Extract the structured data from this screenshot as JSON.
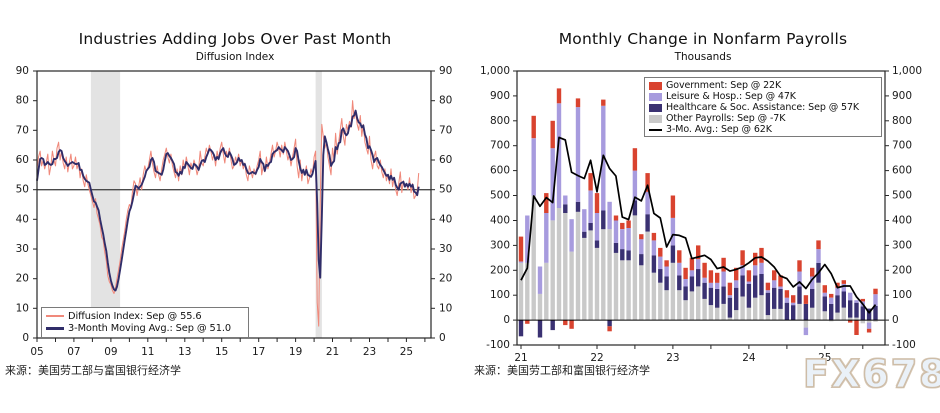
{
  "watermark": "FX678",
  "panels": {
    "left": {
      "title": "Industries Adding Jobs Over Past Month",
      "subtitle": "Diffusion Index",
      "source": "来源：美国劳工部与富国银行经济学",
      "legend": [
        {
          "label": "Diffusion Index: Sep @ 55.6"
        },
        {
          "label": "3-Month Moving Avg.: Sep @ 51.0"
        }
      ]
    },
    "right": {
      "title": "Monthly Change in Nonfarm Payrolls",
      "subtitle": "Thousands",
      "source": "来源：美国劳工部和富国银行经济学",
      "legend": [
        {
          "label": "Government: Sep @ 22K"
        },
        {
          "label": "Leisure & Hosp.: Sep @ 47K"
        },
        {
          "label": "Healthcare & Soc. Assistance: Sep @ 57K"
        },
        {
          "label": "Other Payrolls: Sep @ -7K"
        },
        {
          "label": "3-Mo. Avg.: Sep @ 62K"
        }
      ]
    }
  },
  "chart_data": [
    {
      "type": "line",
      "title": "Industries Adding Jobs Over Past Month",
      "subtitle": "Diffusion Index",
      "x_start_year": 2005,
      "x_range": [
        2005,
        2026.33
      ],
      "ylim": [
        0,
        90
      ],
      "y_tick_step": 10,
      "x_tick_labels": [
        "05",
        "07",
        "09",
        "11",
        "13",
        "15",
        "17",
        "19",
        "21",
        "23",
        "25"
      ],
      "reference_line": 50,
      "recession_bands": [
        [
          2007.92,
          2009.5
        ],
        [
          2020.08,
          2020.42
        ]
      ],
      "series": [
        {
          "name": "Diffusion Index",
          "last_point": "Sep @ 55.6",
          "color": "#f0897b",
          "values": [
            57,
            61,
            63,
            58,
            60,
            57,
            59,
            62,
            55,
            58,
            63,
            60,
            58,
            64,
            66,
            60,
            63,
            59,
            57,
            61,
            56,
            59,
            62,
            57,
            58,
            61,
            57,
            59,
            54,
            57,
            53,
            51,
            55,
            52,
            50,
            48,
            46,
            44,
            47,
            42,
            40,
            38,
            34,
            33,
            29,
            26,
            21,
            19,
            18,
            16,
            15,
            17,
            20,
            23,
            26,
            30,
            33,
            36,
            40,
            43,
            45,
            44,
            49,
            53,
            52,
            48,
            51,
            54,
            50,
            55,
            58,
            56,
            57,
            60,
            63,
            59,
            56,
            54,
            58,
            55,
            53,
            57,
            60,
            62,
            64,
            61,
            59,
            62,
            58,
            56,
            54,
            57,
            53,
            58,
            55,
            60,
            57,
            61,
            58,
            55,
            59,
            57,
            60,
            58,
            55,
            57,
            63,
            59,
            58,
            61,
            64,
            62,
            65,
            63,
            60,
            62,
            58,
            63,
            60,
            64,
            66,
            62,
            59,
            63,
            61,
            64,
            60,
            57,
            58,
            61,
            59,
            62,
            58,
            60,
            57,
            59,
            55,
            53,
            58,
            56,
            54,
            57,
            55,
            58,
            60,
            63,
            55,
            58,
            56,
            61,
            57,
            59,
            62,
            65,
            61,
            63,
            66,
            64,
            61,
            65,
            62,
            66,
            63,
            60,
            62,
            58,
            61,
            64,
            67,
            58,
            54,
            60,
            53,
            57,
            55,
            58,
            52,
            54,
            57,
            55,
            61,
            63,
            12,
            4,
            45,
            72,
            68,
            64,
            66,
            61,
            58,
            55,
            64,
            60,
            69,
            62,
            66,
            70,
            74,
            68,
            65,
            72,
            70,
            73,
            71,
            80,
            74,
            76,
            72,
            70,
            75,
            68,
            72,
            66,
            64,
            62,
            68,
            60,
            57,
            61,
            63,
            58,
            57,
            60,
            56,
            54,
            57,
            53,
            55,
            52,
            57,
            51,
            54,
            50,
            48,
            52,
            56,
            49,
            53,
            51,
            52,
            50,
            54,
            49,
            52,
            47,
            48.0,
            49.4,
            55.6
          ]
        },
        {
          "name": "3-Month Moving Avg.",
          "last_point": "Sep @ 51.0",
          "color": "#302d69",
          "derived": "3-month moving average of Diffusion Index",
          "prior_values": [
            50,
            52
          ]
        }
      ]
    },
    {
      "type": "stacked_bar_with_line",
      "title": "Monthly Change in Nonfarm Payrolls",
      "subtitle": "Thousands",
      "unit": "K",
      "months_start": "2021-01",
      "months_end": "2025-09",
      "ylim": [
        -100,
        1000
      ],
      "y_tick_step": 100,
      "y_tick_labels": [
        "-100",
        "0",
        "100",
        "200",
        "300",
        "400",
        "500",
        "600",
        "700",
        "800",
        "900",
        "1,000"
      ],
      "x_tick_labels": [
        "21",
        "22",
        "23",
        "24",
        "25"
      ],
      "series": [
        {
          "name": "Government",
          "last_point": "Sep @ 22K",
          "color": "#d9432f",
          "values": [
            100,
            -15,
            90,
            0,
            80,
            110,
            60,
            -20,
            -35,
            35,
            0,
            70,
            80,
            25,
            -20,
            20,
            25,
            30,
            90,
            20,
            75,
            30,
            35,
            25,
            90,
            50,
            45,
            50,
            55,
            60,
            50,
            40,
            55,
            50,
            50,
            60,
            45,
            50,
            60,
            30,
            40,
            45,
            30,
            30,
            45,
            35,
            35,
            35,
            30,
            15,
            20,
            15,
            -10,
            -60,
            10,
            -15,
            22
          ]
        },
        {
          "name": "Leisure & Hosp.",
          "last_point": "Sep @ 47K",
          "color": "#a79bde",
          "values": [
            5,
            190,
            230,
            110,
            200,
            290,
            420,
            35,
            130,
            380,
            90,
            130,
            110,
            420,
            110,
            90,
            80,
            90,
            120,
            60,
            90,
            60,
            50,
            40,
            110,
            50,
            30,
            25,
            40,
            20,
            20,
            25,
            60,
            10,
            30,
            40,
            10,
            40,
            45,
            10,
            30,
            10,
            20,
            10,
            60,
            -30,
            50,
            55,
            15,
            25,
            30,
            30,
            30,
            10,
            20,
            -25,
            47
          ]
        },
        {
          "name": "Healthcare & Soc. Assistance",
          "last_point": "Sep @ 57K",
          "color": "#3a3172",
          "values": [
            -65,
            0,
            0,
            -70,
            0,
            -40,
            0,
            35,
            0,
            40,
            25,
            30,
            30,
            75,
            -25,
            40,
            45,
            40,
            60,
            45,
            70,
            70,
            55,
            55,
            70,
            60,
            55,
            60,
            70,
            65,
            70,
            75,
            70,
            80,
            90,
            85,
            95,
            90,
            85,
            90,
            85,
            80,
            70,
            60,
            70,
            65,
            75,
            80,
            60,
            65,
            70,
            65,
            70,
            60,
            55,
            46,
            57
          ]
        },
        {
          "name": "Other Payrolls",
          "last_point": "Sep @ -7K",
          "color": "#c9c9c9",
          "values": [
            230,
            230,
            500,
            105,
            230,
            400,
            450,
            430,
            275,
            435,
            330,
            360,
            290,
            365,
            365,
            270,
            240,
            240,
            420,
            220,
            355,
            190,
            150,
            120,
            230,
            120,
            80,
            115,
            135,
            85,
            60,
            50,
            65,
            10,
            40,
            95,
            50,
            90,
            100,
            20,
            45,
            45,
            0,
            0,
            65,
            -30,
            50,
            150,
            35,
            -5,
            30,
            50,
            10,
            10,
            -13,
            -10,
            -7
          ]
        }
      ],
      "avg_line": {
        "name": "3-Mo. Avg.",
        "last_point": "Sep @ 62K",
        "color": "#000000",
        "derived": "3-month moving average of monthly total",
        "prior_totals": [
          260,
          -50
        ]
      }
    }
  ]
}
